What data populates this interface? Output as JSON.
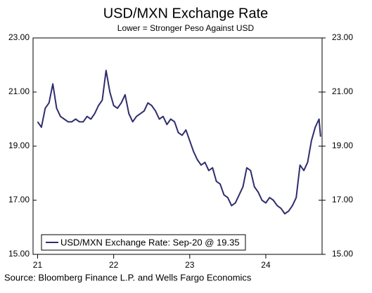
{
  "chart_data": {
    "type": "line",
    "title": "USD/MXN Exchange Rate",
    "subtitle": "Lower = Stronger Peso Against USD",
    "source": "Source: Bloomberg Finance L.P. and Wells Fargo Economics",
    "x": [
      21.0,
      21.05,
      21.1,
      21.15,
      21.2,
      21.25,
      21.3,
      21.35,
      21.4,
      21.45,
      21.5,
      21.55,
      21.6,
      21.65,
      21.7,
      21.75,
      21.8,
      21.85,
      21.9,
      21.95,
      22.0,
      22.05,
      22.1,
      22.15,
      22.2,
      22.25,
      22.3,
      22.35,
      22.4,
      22.45,
      22.5,
      22.55,
      22.6,
      22.65,
      22.7,
      22.75,
      22.8,
      22.85,
      22.9,
      22.95,
      23.0,
      23.05,
      23.1,
      23.15,
      23.2,
      23.25,
      23.3,
      23.35,
      23.4,
      23.45,
      23.5,
      23.55,
      23.6,
      23.65,
      23.7,
      23.75,
      23.8,
      23.85,
      23.9,
      23.95,
      24.0,
      24.05,
      24.1,
      24.15,
      24.2,
      24.25,
      24.3,
      24.35,
      24.4,
      24.45,
      24.5,
      24.55,
      24.6,
      24.65,
      24.7,
      24.72
    ],
    "series": [
      {
        "name": "USD/MXN Exchange Rate: Sep-20 @ 19.35",
        "color": "#2e2d6e",
        "values": [
          19.9,
          19.7,
          20.4,
          20.6,
          21.3,
          20.4,
          20.1,
          20.0,
          19.9,
          19.9,
          20.0,
          19.9,
          19.9,
          20.1,
          20.0,
          20.2,
          20.5,
          20.7,
          21.8,
          21.0,
          20.5,
          20.4,
          20.6,
          20.9,
          20.2,
          19.9,
          20.1,
          20.2,
          20.3,
          20.6,
          20.5,
          20.3,
          20.0,
          20.1,
          19.8,
          20.0,
          19.9,
          19.5,
          19.4,
          19.6,
          19.2,
          18.8,
          18.5,
          18.3,
          18.4,
          18.1,
          18.2,
          17.7,
          17.6,
          17.2,
          17.1,
          16.8,
          16.9,
          17.2,
          17.5,
          18.2,
          18.1,
          17.5,
          17.3,
          17.0,
          16.9,
          17.1,
          17.0,
          16.8,
          16.7,
          16.5,
          16.6,
          16.8,
          17.1,
          18.3,
          18.1,
          18.4,
          19.2,
          19.7,
          20.0,
          19.35
        ]
      }
    ],
    "xlim": [
      20.94,
      24.74
    ],
    "xticks": [
      21,
      22,
      23,
      24
    ],
    "ylim": [
      15,
      23
    ],
    "yticks": [
      {
        "value": 15,
        "label": "15.00"
      },
      {
        "value": 17,
        "label": "17.00"
      },
      {
        "value": 19,
        "label": "19.00"
      },
      {
        "value": 21,
        "label": "21.00"
      },
      {
        "value": 23,
        "label": "23.00"
      }
    ],
    "y2lim": [
      15,
      23
    ],
    "y2ticks": [
      {
        "value": 15,
        "label": "15.00"
      },
      {
        "value": 17,
        "label": "17.00"
      },
      {
        "value": 19,
        "label": "19.00"
      },
      {
        "value": 21,
        "label": "21.00"
      },
      {
        "value": 23,
        "label": "23.00"
      }
    ],
    "grid": false,
    "legend": "bottom-left"
  }
}
